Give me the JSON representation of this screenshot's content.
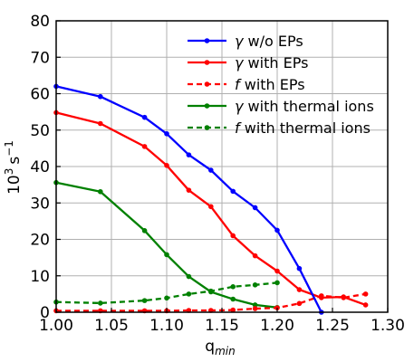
{
  "chart_data": {
    "type": "line",
    "xlabel": "q",
    "xlabel_sub": "min",
    "ylabel_base": "10",
    "ylabel_exp": "3",
    "ylabel_unit": "s",
    "ylabel_unit_exp": "−1",
    "xlim": [
      1.0,
      1.3
    ],
    "ylim": [
      0,
      80
    ],
    "xticks": [
      1.0,
      1.05,
      1.1,
      1.15,
      1.2,
      1.25,
      1.3
    ],
    "xtick_labels": [
      "1.00",
      "1.05",
      "1.10",
      "1.15",
      "1.20",
      "1.25",
      "1.30"
    ],
    "yticks": [
      0,
      10,
      20,
      30,
      40,
      50,
      60,
      70,
      80
    ],
    "ytick_labels": [
      "0",
      "10",
      "20",
      "30",
      "40",
      "50",
      "60",
      "70",
      "80"
    ],
    "grid": true,
    "legend_position": "top-right",
    "series": [
      {
        "name_symbol": "γ",
        "name_text": " w/o EPs",
        "color": "#0000ff",
        "style": "solid",
        "x": [
          1.0,
          1.04,
          1.08,
          1.1,
          1.12,
          1.14,
          1.16,
          1.18,
          1.2,
          1.22,
          1.24
        ],
        "y": [
          62.0,
          59.2,
          53.5,
          49.0,
          43.2,
          39.0,
          33.2,
          28.7,
          22.5,
          12.0,
          0
        ]
      },
      {
        "name_symbol": "γ",
        "name_text": " with EPs",
        "color": "#ff0000",
        "style": "solid",
        "x": [
          1.0,
          1.04,
          1.08,
          1.1,
          1.12,
          1.14,
          1.16,
          1.18,
          1.2,
          1.22,
          1.24,
          1.26,
          1.28
        ],
        "y": [
          54.8,
          51.8,
          45.5,
          40.3,
          33.5,
          29.0,
          21.0,
          15.5,
          11.3,
          6.2,
          4.0,
          4.2,
          2.0
        ]
      },
      {
        "name_symbol": "f",
        "name_text": " with EPs",
        "color": "#ff0000",
        "style": "dashed",
        "x": [
          1.0,
          1.04,
          1.08,
          1.1,
          1.12,
          1.14,
          1.16,
          1.18,
          1.2,
          1.22,
          1.24,
          1.26,
          1.28
        ],
        "y": [
          0.4,
          0.4,
          0.4,
          0.4,
          0.5,
          0.5,
          0.6,
          1.0,
          1.2,
          2.4,
          4.5,
          4.0,
          5.0
        ]
      },
      {
        "name_symbol": "γ",
        "name_text": " with thermal ions",
        "color": "#008000",
        "style": "solid",
        "x": [
          1.0,
          1.04,
          1.08,
          1.1,
          1.12,
          1.14,
          1.16,
          1.18,
          1.2
        ],
        "y": [
          35.6,
          33.1,
          22.4,
          15.8,
          9.8,
          5.6,
          3.6,
          2.0,
          1.3
        ]
      },
      {
        "name_symbol": "f",
        "name_text": " with thermal ions",
        "color": "#008000",
        "style": "dashed",
        "x": [
          1.0,
          1.04,
          1.08,
          1.1,
          1.12,
          1.14,
          1.16,
          1.18,
          1.2
        ],
        "y": [
          2.8,
          2.5,
          3.2,
          3.9,
          5.0,
          5.8,
          7.0,
          7.5,
          8.1
        ]
      }
    ]
  }
}
